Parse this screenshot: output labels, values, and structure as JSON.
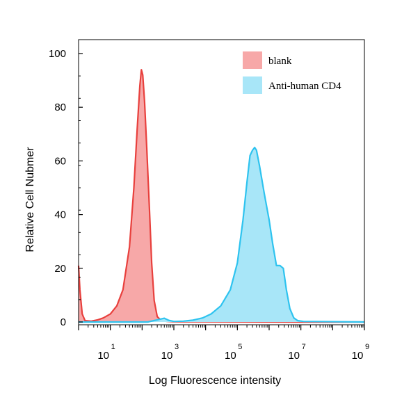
{
  "chart_data": {
    "type": "area",
    "xlabel": "Log Fluorescence intensity",
    "ylabel": "Relative Cell Nubmer",
    "x_scale": "log",
    "xlim": [
      1,
      1000000000
    ],
    "ylim": [
      0,
      100
    ],
    "x_ticks": [
      {
        "base": "10",
        "exp": "1"
      },
      {
        "base": "10",
        "exp": "3"
      },
      {
        "base": "10",
        "exp": "5"
      },
      {
        "base": "10",
        "exp": "7"
      },
      {
        "base": "10",
        "exp": "9"
      }
    ],
    "y_ticks": [
      "0",
      "20",
      "40",
      "60",
      "80",
      "100"
    ],
    "grid": false,
    "legend_position": "top-right",
    "series": [
      {
        "name": "blank",
        "fill": "#f7a8a8",
        "stroke": "#e8403d",
        "points": [
          [
            1.0,
            21
          ],
          [
            1.1,
            12
          ],
          [
            1.3,
            3
          ],
          [
            1.6,
            0.5
          ],
          [
            2.5,
            0.3
          ],
          [
            4,
            0.8
          ],
          [
            6,
            1.5
          ],
          [
            10,
            3
          ],
          [
            16,
            6
          ],
          [
            25,
            12
          ],
          [
            40,
            28
          ],
          [
            55,
            50
          ],
          [
            70,
            72
          ],
          [
            85,
            88
          ],
          [
            95,
            94
          ],
          [
            105,
            92
          ],
          [
            120,
            82
          ],
          [
            140,
            65
          ],
          [
            170,
            42
          ],
          [
            200,
            22
          ],
          [
            240,
            8
          ],
          [
            300,
            2
          ],
          [
            400,
            0.6
          ],
          [
            600,
            0.2
          ],
          [
            1000,
            0.1
          ],
          [
            10000000,
            0
          ],
          [
            1000000000,
            0
          ]
        ]
      },
      {
        "name": "Anti-human CD4",
        "fill": "#a8e6f8",
        "stroke": "#2ec3ef",
        "points": [
          [
            1,
            0
          ],
          [
            150,
            0
          ],
          [
            300,
            0.8
          ],
          [
            500,
            1.4
          ],
          [
            700,
            0.6
          ],
          [
            1000,
            0.2
          ],
          [
            2000,
            0.3
          ],
          [
            4000,
            0.7
          ],
          [
            8000,
            1.5
          ],
          [
            15000,
            3
          ],
          [
            30000,
            6
          ],
          [
            60000,
            12
          ],
          [
            100000,
            22
          ],
          [
            150000,
            38
          ],
          [
            200000,
            52
          ],
          [
            250000,
            62
          ],
          [
            300000,
            64
          ],
          [
            350000,
            65
          ],
          [
            400000,
            64
          ],
          [
            500000,
            58
          ],
          [
            700000,
            48
          ],
          [
            1000000,
            38
          ],
          [
            1300000,
            29
          ],
          [
            1700000,
            21
          ],
          [
            2200000,
            21
          ],
          [
            2800000,
            20
          ],
          [
            3500000,
            12
          ],
          [
            4500000,
            5
          ],
          [
            6000000,
            1.5
          ],
          [
            8000000,
            0.5
          ],
          [
            12000000,
            0.2
          ],
          [
            1000000000,
            0
          ]
        ]
      }
    ]
  }
}
